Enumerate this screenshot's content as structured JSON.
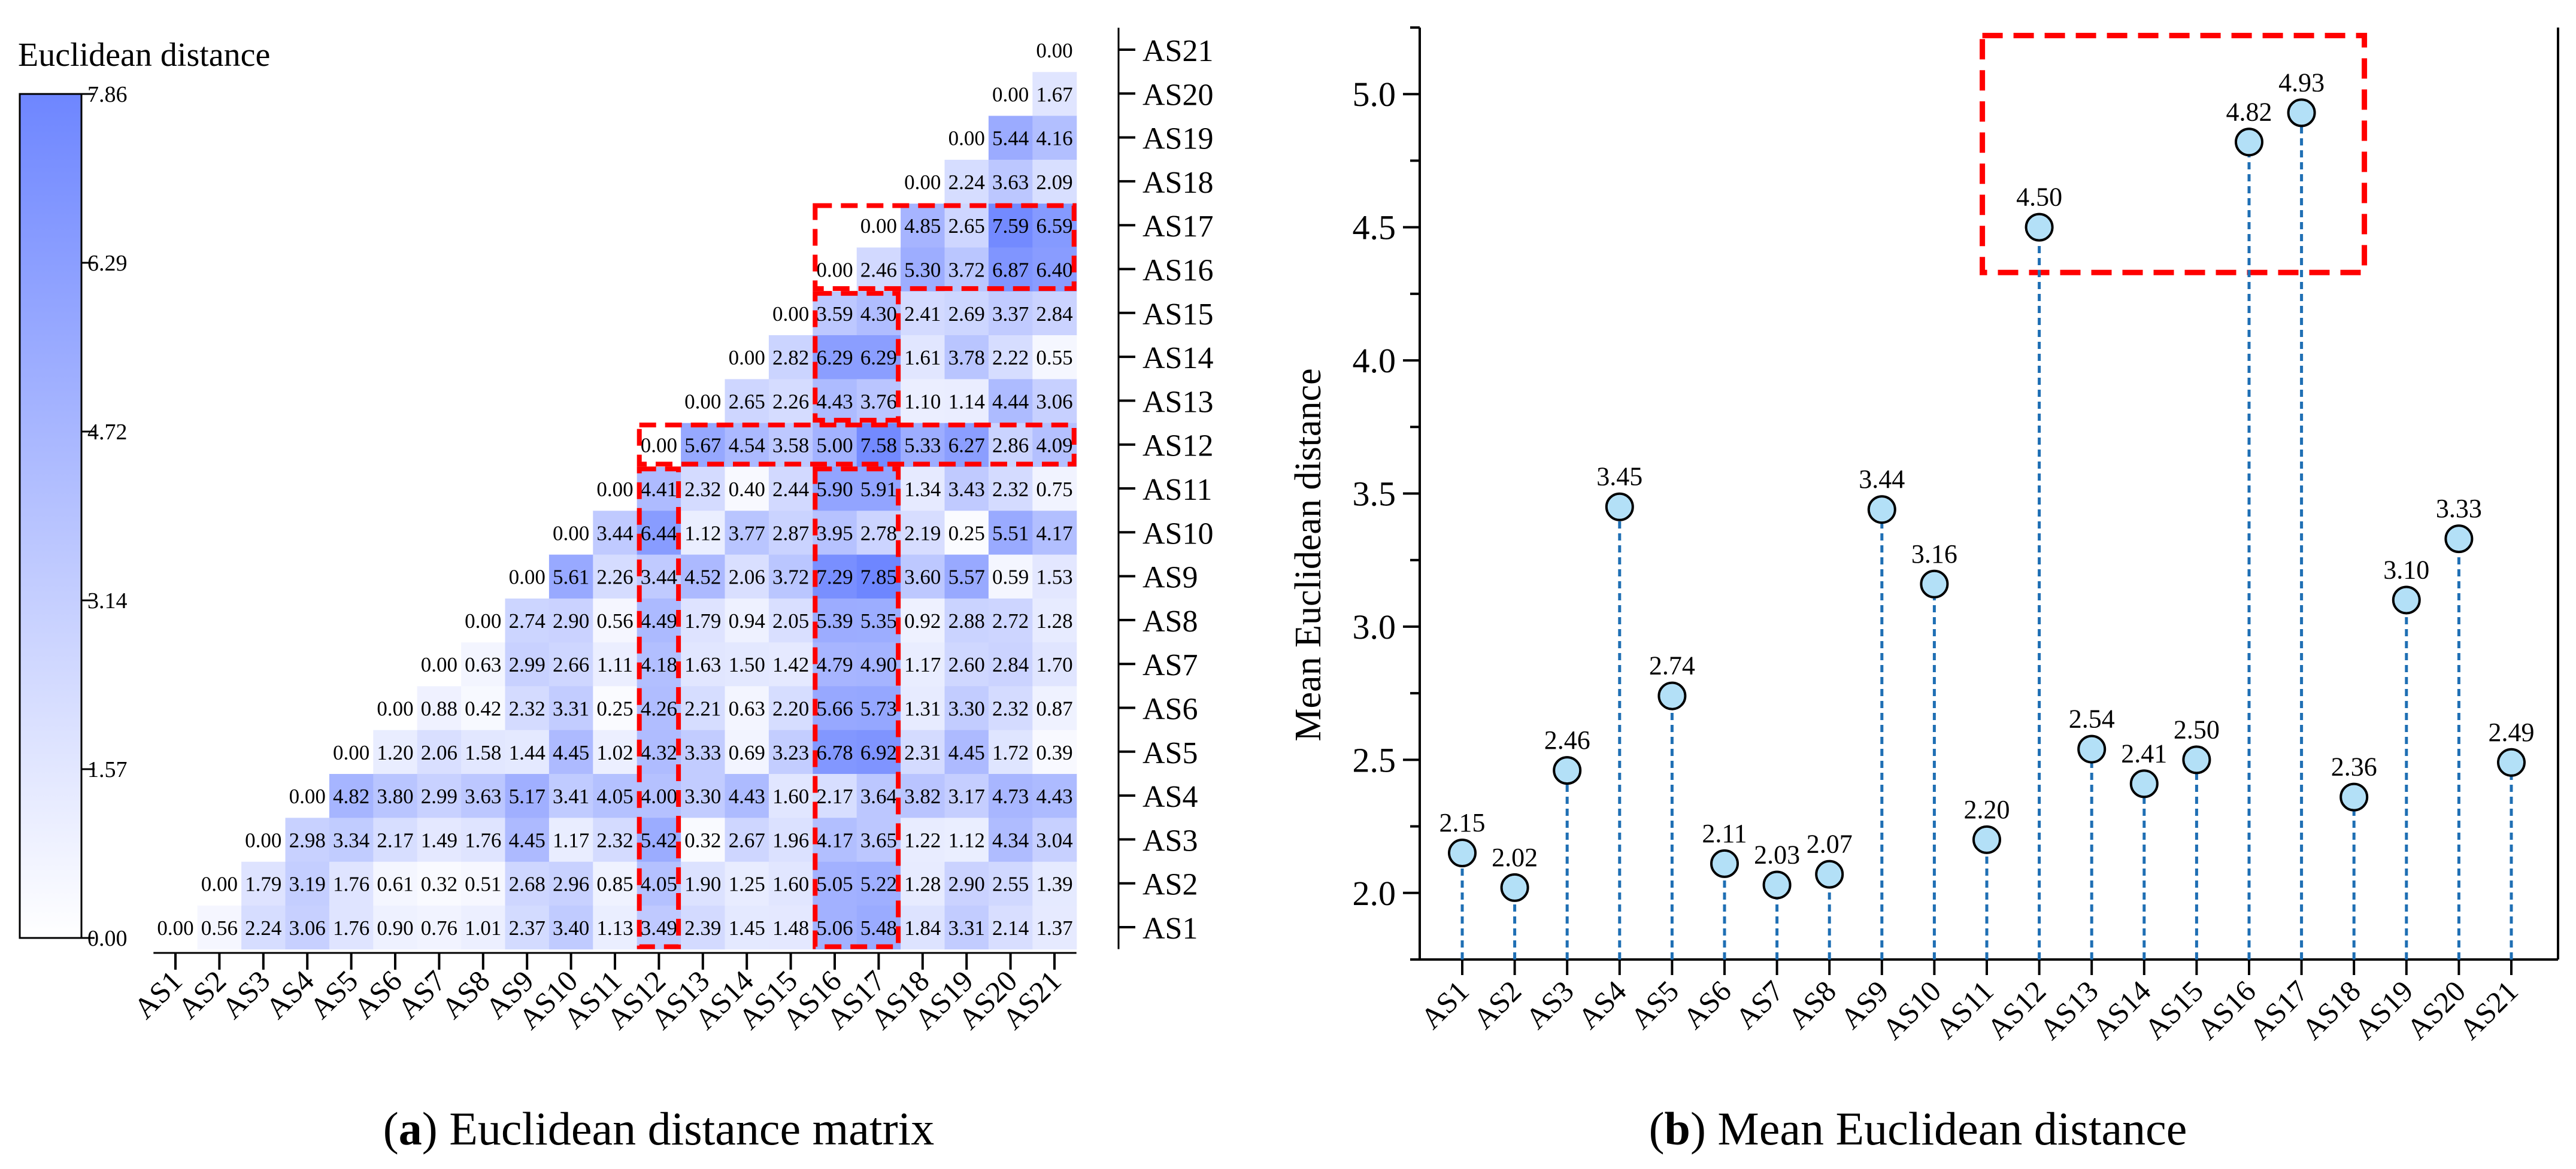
{
  "accent_colors": {
    "heat_max": "#6e86ff",
    "heat_min": "#ffffff",
    "highlight": "#ff0000",
    "stem": "#1f6fb4",
    "marker_fill": "#b3e0f7",
    "marker_stroke": "#000000"
  },
  "chart_data": [
    {
      "type": "heatmap",
      "caption_label": "a",
      "caption_text": " Euclidean distance matrix",
      "labels": [
        "AS1",
        "AS2",
        "AS3",
        "AS4",
        "AS5",
        "AS6",
        "AS7",
        "AS8",
        "AS9",
        "AS10",
        "AS11",
        "AS12",
        "AS13",
        "AS14",
        "AS15",
        "AS16",
        "AS17",
        "AS18",
        "AS19",
        "AS20",
        "AS21"
      ],
      "rows": [
        [
          0.0,
          0.56,
          2.24,
          3.06,
          1.76,
          0.9,
          0.76,
          1.01,
          2.37,
          3.4,
          1.13,
          3.49,
          2.39,
          1.45,
          1.48,
          5.06,
          5.48,
          1.84,
          3.31,
          2.14,
          1.37
        ],
        [
          0.0,
          1.79,
          3.19,
          1.76,
          0.61,
          0.32,
          0.51,
          2.68,
          2.96,
          0.85,
          4.05,
          1.9,
          1.25,
          1.6,
          5.05,
          5.22,
          1.28,
          2.9,
          2.55,
          1.39
        ],
        [
          0.0,
          2.98,
          3.34,
          2.17,
          1.49,
          1.76,
          4.45,
          1.17,
          2.32,
          5.42,
          0.32,
          2.67,
          1.96,
          4.17,
          3.65,
          1.22,
          1.12,
          4.34,
          3.04
        ],
        [
          0.0,
          4.82,
          3.8,
          2.99,
          3.63,
          5.17,
          3.41,
          4.05,
          4.0,
          3.3,
          4.43,
          1.6,
          2.17,
          3.64,
          3.82,
          3.17,
          4.73,
          4.43
        ],
        [
          0.0,
          1.2,
          2.06,
          1.58,
          1.44,
          4.45,
          1.02,
          4.32,
          3.33,
          0.69,
          3.23,
          6.78,
          6.92,
          2.31,
          4.45,
          1.72,
          0.39
        ],
        [
          0.0,
          0.88,
          0.42,
          2.32,
          3.31,
          0.25,
          4.26,
          2.21,
          0.63,
          2.2,
          5.66,
          5.73,
          1.31,
          3.3,
          2.32,
          0.87
        ],
        [
          0.0,
          0.63,
          2.99,
          2.66,
          1.11,
          4.18,
          1.63,
          1.5,
          1.42,
          4.79,
          4.9,
          1.17,
          2.6,
          2.84,
          1.7
        ],
        [
          0.0,
          2.74,
          2.9,
          0.56,
          4.49,
          1.79,
          0.94,
          2.05,
          5.39,
          5.35,
          0.92,
          2.88,
          2.72,
          1.28
        ],
        [
          0.0,
          5.61,
          2.26,
          3.44,
          4.52,
          2.06,
          3.72,
          7.29,
          7.85,
          3.6,
          5.57,
          0.59,
          1.53
        ],
        [
          0.0,
          3.44,
          6.44,
          1.12,
          3.77,
          2.87,
          3.95,
          2.78,
          2.19,
          0.25,
          5.51,
          4.17
        ],
        [
          0.0,
          4.41,
          2.32,
          0.4,
          2.44,
          5.9,
          5.91,
          1.34,
          3.43,
          2.32,
          0.75
        ],
        [
          0.0,
          5.67,
          4.54,
          3.58,
          5.0,
          7.58,
          5.33,
          6.27,
          2.86,
          4.09
        ],
        [
          0.0,
          2.65,
          2.26,
          4.43,
          3.76,
          1.1,
          1.14,
          4.44,
          3.06
        ],
        [
          0.0,
          2.82,
          6.29,
          6.29,
          1.61,
          3.78,
          2.22,
          0.55
        ],
        [
          0.0,
          3.59,
          4.3,
          2.41,
          2.69,
          3.37,
          2.84
        ],
        [
          0.0,
          2.46,
          5.3,
          3.72,
          6.87,
          6.4
        ],
        [
          0.0,
          4.85,
          2.65,
          7.59,
          6.59
        ],
        [
          0.0,
          2.24,
          3.63,
          2.09
        ],
        [
          0.0,
          5.44,
          4.16
        ],
        [
          0.0,
          1.67
        ],
        [
          0.0
        ]
      ],
      "colorbar": {
        "title": "Euclidean distance",
        "min": 0.0,
        "max": 7.86,
        "ticks": [
          "0.00",
          "1.57",
          "3.14",
          "4.72",
          "6.29",
          "7.86"
        ]
      },
      "highlighted_labels": [
        "AS12",
        "AS16",
        "AS17"
      ]
    },
    {
      "type": "scatter",
      "style": "lollipop",
      "caption_label": "b",
      "caption_text": " Mean Euclidean distance",
      "categories": [
        "AS1",
        "AS2",
        "AS3",
        "AS4",
        "AS5",
        "AS6",
        "AS7",
        "AS8",
        "AS9",
        "AS10",
        "AS11",
        "AS12",
        "AS13",
        "AS14",
        "AS15",
        "AS16",
        "AS17",
        "AS18",
        "AS19",
        "AS20",
        "AS21"
      ],
      "values": [
        2.15,
        2.02,
        2.46,
        3.45,
        2.74,
        2.11,
        2.03,
        2.07,
        3.44,
        3.16,
        2.2,
        4.5,
        2.54,
        2.41,
        2.5,
        4.82,
        4.93,
        2.36,
        3.1,
        3.33,
        2.49
      ],
      "value_labels": [
        "2.15",
        "2.02",
        "2.46",
        "3.45",
        "2.74",
        "2.11",
        "2.03",
        "2.07",
        "3.44",
        "3.16",
        "2.20",
        "4.50",
        "2.54",
        "2.41",
        "2.50",
        "4.82",
        "4.93",
        "2.36",
        "3.10",
        "3.33",
        "2.49"
      ],
      "ylabel": "Mean Euclidean distance",
      "xlabel": "",
      "ylim": [
        1.75,
        5.25
      ],
      "yticks": [
        "2.0",
        "2.5",
        "3.0",
        "3.5",
        "4.0",
        "4.5",
        "5.0"
      ],
      "highlighted": [
        "AS12",
        "AS16",
        "AS17"
      ]
    }
  ]
}
